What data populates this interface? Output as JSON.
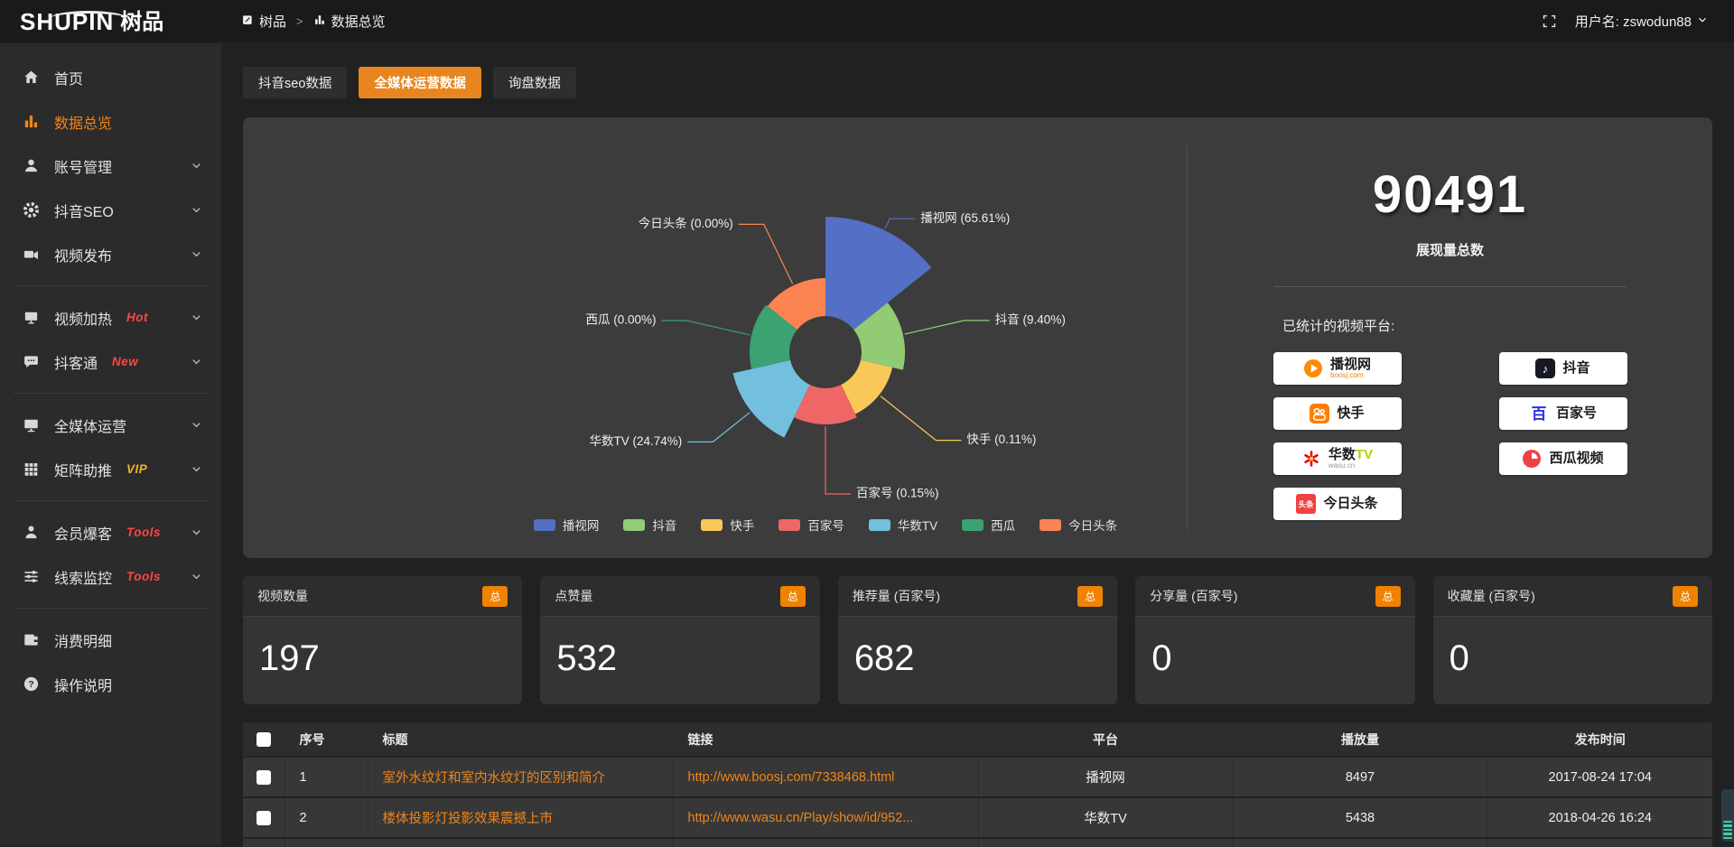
{
  "header": {
    "logo_en": "SHUPIN",
    "logo_cn": "树品",
    "breadcrumb": [
      {
        "label": "树品"
      },
      {
        "label": "数据总览"
      }
    ],
    "breadcrumb_sep": ">",
    "username": "用户名: zswodun88"
  },
  "sidebar": {
    "items": [
      {
        "label": "首页",
        "icon": "home"
      },
      {
        "label": "数据总览",
        "icon": "bar-chart",
        "active": true
      },
      {
        "label": "账号管理",
        "icon": "user",
        "expandable": true
      },
      {
        "label": "抖音SEO",
        "icon": "gear",
        "expandable": true
      },
      {
        "label": "视频发布",
        "icon": "video",
        "expandable": true
      },
      {
        "divider": true
      },
      {
        "label": "视频加热",
        "icon": "screen",
        "badge": "Hot",
        "badge_color": "#ff4545",
        "expandable": true
      },
      {
        "label": "抖客通",
        "icon": "chat",
        "badge": "New",
        "badge_color": "#ff4545",
        "expandable": true
      },
      {
        "divider": true
      },
      {
        "label": "全媒体运营",
        "icon": "monitor",
        "expandable": true
      },
      {
        "label": "矩阵助推",
        "icon": "grid",
        "badge": "VIP",
        "badge_color": "#f0b429",
        "expandable": true
      },
      {
        "divider": true
      },
      {
        "label": "会员爆客",
        "icon": "person",
        "badge": "Tools",
        "badge_color": "#ff4545",
        "expandable": true
      },
      {
        "label": "线索监控",
        "icon": "sliders",
        "badge": "Tools",
        "badge_color": "#ff4545",
        "expandable": true
      },
      {
        "divider": true
      },
      {
        "label": "消费明细",
        "icon": "wallet"
      },
      {
        "label": "操作说明",
        "icon": "question"
      }
    ]
  },
  "tabs": [
    {
      "label": "抖音seo数据",
      "active": false
    },
    {
      "label": "全媒体运营数据",
      "active": true
    },
    {
      "label": "询盘数据",
      "active": false
    }
  ],
  "chart_data": {
    "type": "pie",
    "style": "nightingale-rose",
    "legend_position": "bottom",
    "equal_angles": true,
    "start_angle_deg": -90,
    "inner_radius_px": 40,
    "series": [
      {
        "name": "播视网",
        "value_pct": 65.61,
        "label": "播视网 (65.61%)",
        "color": "#5470c6",
        "radius_px": 150
      },
      {
        "name": "抖音",
        "value_pct": 9.4,
        "label": "抖音 (9.40%)",
        "color": "#91cc75",
        "radius_px": 88
      },
      {
        "name": "快手",
        "value_pct": 0.11,
        "label": "快手 (0.11%)",
        "color": "#fac858",
        "radius_px": 76
      },
      {
        "name": "百家号",
        "value_pct": 0.15,
        "label": "百家号 (0.15%)",
        "color": "#ee6666",
        "radius_px": 80
      },
      {
        "name": "华数TV",
        "value_pct": 24.74,
        "label": "华数TV (24.74%)",
        "color": "#73c0de",
        "radius_px": 105
      },
      {
        "name": "西瓜",
        "value_pct": 0.0,
        "label": "西瓜 (0.00%)",
        "color": "#3ba272",
        "radius_px": 84
      },
      {
        "name": "今日头条",
        "value_pct": 0.0,
        "label": "今日头条 (0.00%)",
        "color": "#fc8452",
        "radius_px": 82
      }
    ],
    "legend": [
      "播视网",
      "抖音",
      "快手",
      "百家号",
      "华数TV",
      "西瓜",
      "今日头条"
    ]
  },
  "summary": {
    "total": "90491",
    "total_label": "展现量总数"
  },
  "platforms": {
    "title": "已统计的视频平台:",
    "items": [
      {
        "name": "播视网",
        "sub": "boosj.com",
        "icon": "boosj"
      },
      {
        "name": "抖音",
        "icon": "douyin"
      },
      {
        "name": "快手",
        "icon": "kuaishou"
      },
      {
        "name": "百家号",
        "icon": "baijiahao"
      },
      {
        "name": "华数TV",
        "sub": "wasu.cn",
        "icon": "wasu"
      },
      {
        "name": "西瓜视频",
        "icon": "xigua"
      },
      {
        "name": "今日头条",
        "icon": "toutiao"
      }
    ]
  },
  "stat_cards": [
    {
      "title": "视频数量",
      "badge": "总",
      "value": "197"
    },
    {
      "title": "点赞量",
      "badge": "总",
      "value": "532"
    },
    {
      "title": "推荐量 (百家号)",
      "badge": "总",
      "value": "682"
    },
    {
      "title": "分享量 (百家号)",
      "badge": "总",
      "value": "0"
    },
    {
      "title": "收藏量 (百家号)",
      "badge": "总",
      "value": "0"
    }
  ],
  "table": {
    "headers": [
      "序号",
      "标题",
      "链接",
      "平台",
      "播放量",
      "发布时间"
    ],
    "rows": [
      {
        "num": "1",
        "title": "室外水纹灯和室内水纹灯的区别和简介",
        "link": "http://www.boosj.com/7338468.html",
        "platform": "播视网",
        "plays": "8497",
        "time": "2017-08-24 17:04"
      },
      {
        "num": "2",
        "title": "楼体投影灯投影效果震撼上市",
        "link": "http://www.wasu.cn/Play/show/id/952...",
        "platform": "华数TV",
        "plays": "5438",
        "time": "2018-04-26 16:24"
      }
    ]
  },
  "colors": {
    "accent_orange": "#e8851e",
    "badge_orange": "#ef8200",
    "link_orange": "#f08519",
    "hot_red": "#ff4545",
    "vip_gold": "#f0b429",
    "panel_bg": "#3c3c3c",
    "sidebar_bg": "#2b2b2b",
    "topbar_bg": "#1a1a1a"
  }
}
